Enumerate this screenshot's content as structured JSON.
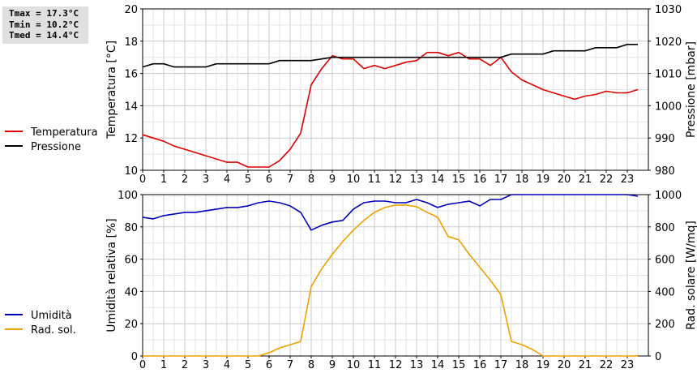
{
  "stats": {
    "tmax": "Tmax = 17.3°C",
    "tmin": "Tmin = 10.2°C",
    "tmed": "Tmed = 14.4°C"
  },
  "chart_data": [
    {
      "type": "line",
      "xlim": [
        0,
        24
      ],
      "xticks": [
        0,
        1,
        2,
        3,
        4,
        5,
        6,
        7,
        8,
        9,
        10,
        11,
        12,
        13,
        14,
        15,
        16,
        17,
        18,
        19,
        20,
        21,
        22,
        23
      ],
      "grid": true,
      "legend": "left",
      "left_axis": {
        "label": "Temperatura [°C]",
        "ylim": [
          10,
          20
        ],
        "ticks": [
          10,
          12,
          14,
          16,
          18,
          20
        ]
      },
      "right_axis": {
        "label": "Pressione [mbar]",
        "ylim": [
          980,
          1030
        ],
        "ticks": [
          980,
          990,
          1000,
          1010,
          1020,
          1030
        ]
      },
      "series": [
        {
          "name": "Temperatura",
          "axis": "left",
          "color": "#dd0000",
          "x": [
            0,
            1,
            1.5,
            2,
            3,
            4,
            4.5,
            5,
            6,
            6.5,
            7,
            7.5,
            8,
            8.5,
            9,
            9.5,
            10,
            10.5,
            11,
            11.5,
            12,
            12.5,
            13,
            13.5,
            14,
            14.5,
            15,
            15.5,
            16,
            16.5,
            17,
            17.5,
            18,
            18.5,
            19,
            19.5,
            20,
            20.5,
            21,
            21.5,
            22,
            22.5,
            23,
            23.5
          ],
          "y": [
            12.2,
            11.8,
            11.5,
            11.3,
            10.9,
            10.5,
            10.5,
            10.2,
            10.2,
            10.6,
            11.3,
            12.3,
            15.3,
            16.3,
            17.1,
            16.9,
            16.9,
            16.3,
            16.5,
            16.3,
            16.5,
            16.7,
            16.8,
            17.3,
            17.3,
            17.1,
            17.3,
            16.9,
            16.9,
            16.5,
            17.0,
            16.1,
            15.6,
            15.3,
            15.0,
            14.8,
            14.6,
            14.4,
            14.6,
            14.7,
            14.9,
            14.8,
            14.8,
            15.0
          ]
        },
        {
          "name": "Pressione",
          "axis": "right",
          "color": "#000000",
          "x": [
            0,
            0.5,
            1,
            1.5,
            3,
            3.5,
            6,
            6.5,
            8,
            8.5,
            9,
            17,
            17.5,
            19,
            19.5,
            21,
            21.5,
            22.5,
            23,
            23.5
          ],
          "y": [
            1012,
            1013,
            1013,
            1012,
            1012,
            1013,
            1013,
            1014,
            1014,
            1014.5,
            1015,
            1015,
            1016,
            1016,
            1017,
            1017,
            1018,
            1018,
            1019,
            1019
          ]
        }
      ]
    },
    {
      "type": "line",
      "xlim": [
        0,
        24
      ],
      "xticks": [
        0,
        1,
        2,
        3,
        4,
        5,
        6,
        7,
        8,
        9,
        10,
        11,
        12,
        13,
        14,
        15,
        16,
        17,
        18,
        19,
        20,
        21,
        22,
        23
      ],
      "grid": true,
      "legend": "left",
      "left_axis": {
        "label": "Umidità relativa [%]",
        "ylim": [
          0,
          100
        ],
        "ticks": [
          0,
          20,
          40,
          60,
          80,
          100
        ]
      },
      "right_axis": {
        "label": "Rad. solare [W/mq]",
        "ylim": [
          0,
          1000
        ],
        "ticks": [
          0,
          200,
          400,
          600,
          800,
          1000
        ]
      },
      "series": [
        {
          "name": "Umidità",
          "axis": "left",
          "color": "#0000bb",
          "x": [
            0,
            0.5,
            1,
            1.5,
            2,
            2.5,
            3,
            3.5,
            4,
            4.5,
            5,
            5.5,
            6,
            6.5,
            7,
            7.5,
            8,
            8.5,
            9,
            9.5,
            10,
            10.5,
            11,
            11.5,
            12,
            12.5,
            13,
            13.5,
            14,
            14.5,
            15,
            15.5,
            16,
            16.5,
            17,
            17.5,
            18,
            23,
            23.5
          ],
          "y": [
            86,
            85,
            87,
            88,
            89,
            89,
            90,
            91,
            92,
            92,
            93,
            95,
            96,
            95,
            93,
            89,
            78,
            81,
            83,
            84,
            91,
            95,
            96,
            96,
            95,
            95,
            97,
            95,
            92,
            94,
            95,
            96,
            93,
            97,
            97,
            100,
            100,
            100,
            99
          ]
        },
        {
          "name": "Rad. sol.",
          "axis": "right",
          "color": "#f0a000",
          "x": [
            0,
            5.5,
            6,
            6.5,
            7,
            7.5,
            8,
            8.5,
            9,
            9.5,
            10,
            10.5,
            11,
            11.5,
            12,
            12.5,
            13,
            13.5,
            14,
            14.5,
            15,
            15.5,
            16,
            16.5,
            17,
            17.5,
            18,
            18.5,
            19,
            23.5
          ],
          "y": [
            0,
            0,
            20,
            50,
            70,
            90,
            430,
            540,
            630,
            710,
            780,
            840,
            890,
            920,
            935,
            935,
            925,
            890,
            860,
            740,
            720,
            630,
            550,
            470,
            380,
            90,
            70,
            40,
            0,
            0
          ]
        }
      ]
    }
  ]
}
